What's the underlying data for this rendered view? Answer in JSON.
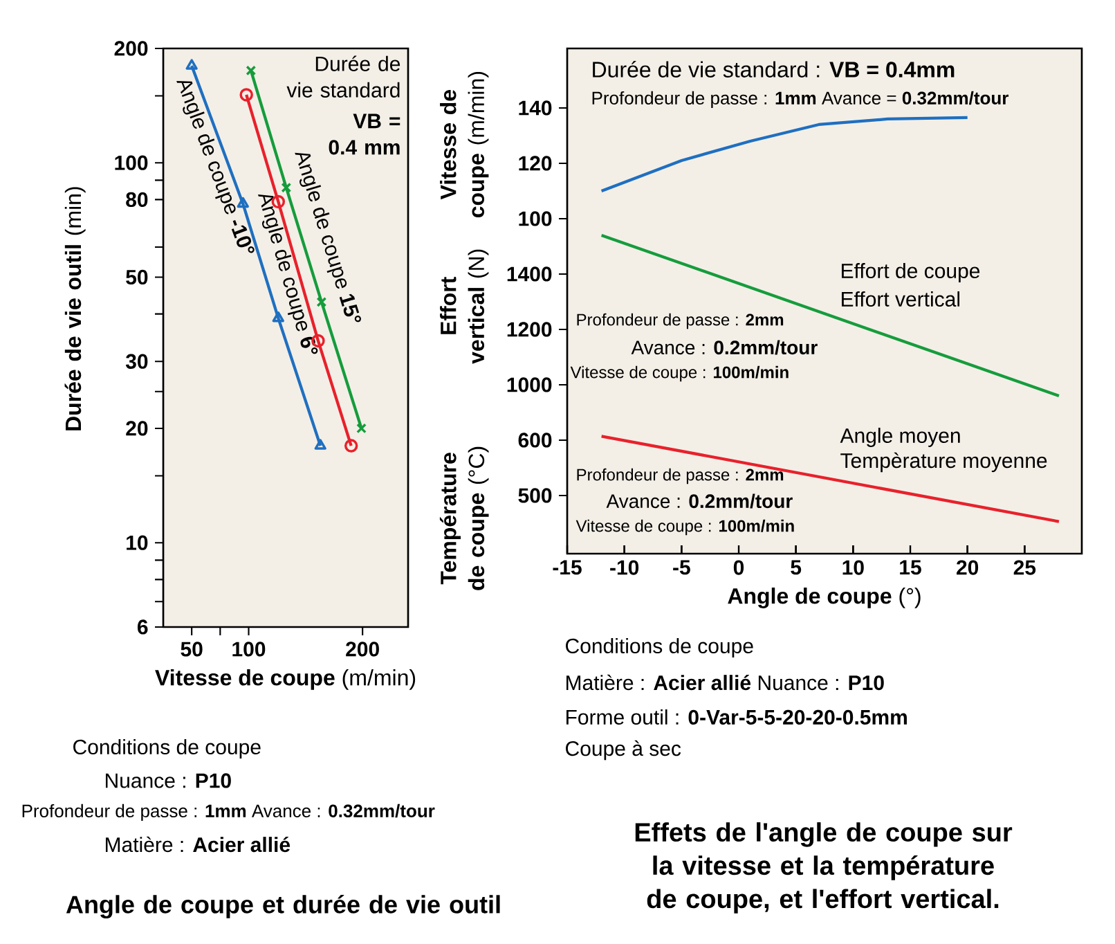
{
  "chart_data": [
    {
      "type": "line",
      "title": "Angle de coupe et durée de vie outil",
      "xlabel": "**Vitesse de coupe** (m/min)",
      "ylabel": "**Durée de vie outil** (min)",
      "log": "y",
      "xlim": [
        25,
        240
      ],
      "xticks": [
        50,
        {
          "value": 75,
          "label": null
        },
        100,
        200
      ],
      "ylim": [
        6,
        200
      ],
      "yticks": [
        6,
        {
          "value": 7,
          "label": null
        },
        {
          "value": 8,
          "label": null
        },
        {
          "value": 9,
          "label": null
        },
        10,
        {
          "value": 15,
          "label": null
        },
        20,
        {
          "value": 25,
          "label": null
        },
        30,
        {
          "value": 40,
          "label": null
        },
        50,
        {
          "value": 60,
          "label": null
        },
        80,
        {
          "value": 90,
          "label": null
        },
        100,
        {
          "value": 150,
          "label": null
        },
        200
      ],
      "annotations": [
        "Durée de vie standard",
        "VB = 0.4 mm",
        "Conditions de coupe",
        "Nuance : **P10**",
        "Profondeur de passe : **1mm** Avance : **0.32mm/tour**",
        "Matière : **Acier allié**"
      ],
      "series": [
        {
          "name": "Angle de coupe **-10°**",
          "color": "#1f6fc0",
          "marker": "triangle",
          "x": [
            50,
            95,
            126,
            163
          ],
          "values": [
            180,
            78,
            39,
            18
          ]
        },
        {
          "name": "Angle de coupe **6°**",
          "color": "#e8212b",
          "marker": "circle",
          "x": [
            98,
            126,
            161,
            190
          ],
          "values": [
            151,
            79,
            34,
            18
          ]
        },
        {
          "name": "Angle de coupe **15°**",
          "color": "#169c3c",
          "marker": "cross",
          "x": [
            102,
            133,
            164,
            199
          ],
          "values": [
            175,
            86,
            43,
            20
          ]
        }
      ]
    },
    {
      "type": "line",
      "ylabel": "**Vitesse de coupe** (m/min)",
      "tick_labels": "y",
      "xlim": [
        -15,
        30
      ],
      "xticks": [
        -15,
        -10,
        -5,
        0,
        5,
        10,
        15,
        20,
        25
      ],
      "ylim": [
        -21,
        161.5
      ],
      "yticks": [
        100,
        120,
        140
      ],
      "annotations": [
        "Durée de vie standard : **VB = 0.4mm**",
        "Profondeur de passe : **1mm**  Avance = **0.32mm/tour**"
      ],
      "series": [
        {
          "color": "#1f6fc0",
          "x": [
            -12,
            -5,
            1,
            7,
            13,
            20
          ],
          "values": [
            110,
            121,
            128,
            134,
            136,
            136.5
          ]
        }
      ]
    },
    {
      "type": "line",
      "ylabel": "**Effort vertical** (N)",
      "tick_labels": "y",
      "xlim": [
        -15,
        30
      ],
      "xticks": [
        -15,
        -10,
        -5,
        0,
        5,
        10,
        15,
        20,
        25
      ],
      "ylim": [
        390,
        2215
      ],
      "yticks": [
        1000,
        1200,
        1400
      ],
      "annotations": [
        "Effort de coupe",
        "Effort vertical",
        "Profondeur de passe : **2mm**",
        "Avance : **0.2mm/tour**",
        "Vitesse de coupe : **100m/min**"
      ],
      "series": [
        {
          "color": "#169c3c",
          "x": [
            -12,
            28
          ],
          "values": [
            1540,
            960
          ]
        }
      ]
    },
    {
      "type": "line",
      "title": "Effets de l'angle de coupe sur la vitesse et la température de coupe, et l'effort vertical.",
      "xlabel": "**Angle de coupe** (°)",
      "ylabel": "**Température de coupe** (°C)",
      "xlim": [
        -15,
        30
      ],
      "xticks": [
        -15,
        -10,
        -5,
        0,
        5,
        10,
        15,
        20,
        25
      ],
      "ylim": [
        395,
        1307.5
      ],
      "yticks": [
        500,
        600
      ],
      "annotations": [
        "Angle moyen",
        "Tempèrature moyenne",
        "Profondeur de passe : **2mm**",
        "Avance : **0.2mm/tour**",
        "Vitesse de coupe : **100m/min**",
        "Conditions de coupe",
        "Matière : **Acier allié**     Nuance : **P10**",
        "Forme outil : **0-Var-5-5-20-20-0.5mm**",
        "Coupe à sec"
      ],
      "series": [
        {
          "color": "#e8212b",
          "x": [
            -12,
            28
          ],
          "values": [
            607,
            453
          ]
        }
      ]
    }
  ]
}
